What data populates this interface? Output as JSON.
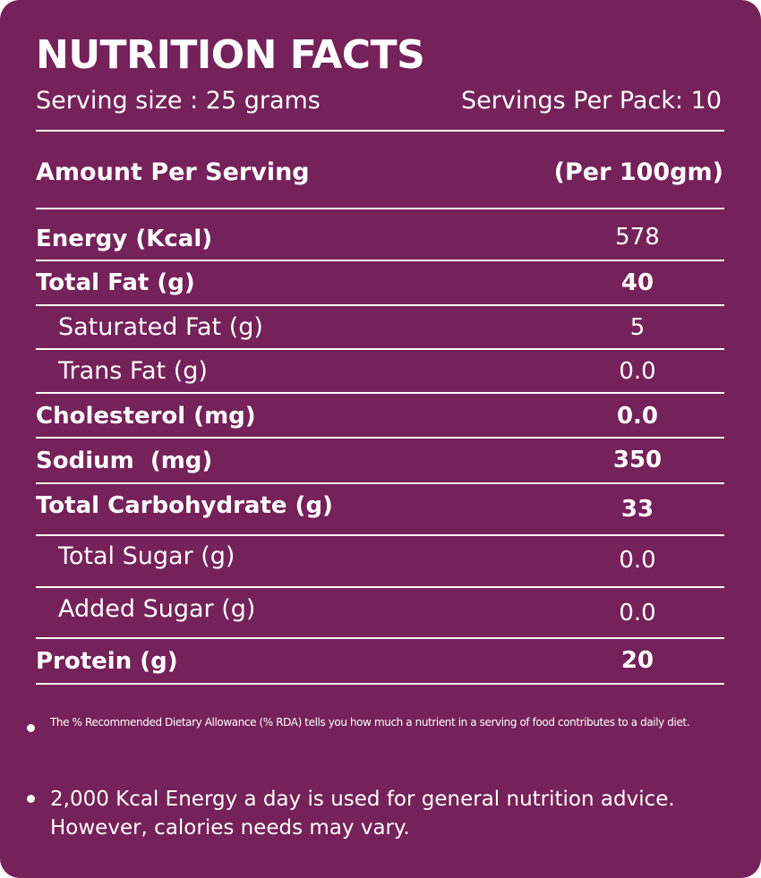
{
  "header": {
    "title": "NUTRITION FACTS",
    "serving_size": "Serving size : 25 grams",
    "servings_per_pack": "Servings Per Pack: 10"
  },
  "table": {
    "amount_label": "Amount Per Serving",
    "per_label": "(Per 100gm)",
    "rows": [
      {
        "label": "Energy (Kcal)",
        "value": "578"
      },
      {
        "label": "Total Fat (g)",
        "value": "40"
      },
      {
        "label": "Saturated Fat (g)",
        "value": "5"
      },
      {
        "label": "Trans Fat (g)",
        "value": "0.0"
      },
      {
        "label": "Cholesterol (mg)",
        "value": "0.0"
      },
      {
        "label": "Sodium  (mg)",
        "value": "350"
      },
      {
        "label": "Total Carbohydrate (g)",
        "value": "33"
      },
      {
        "label": "Total Sugar (g)",
        "value": "0.0"
      },
      {
        "label": "Added Sugar (g)",
        "value": "0.0"
      },
      {
        "label": "Protein (g)",
        "value": "20"
      }
    ]
  },
  "notes": {
    "rda": "The % Recommended Dietary Allowance (% RDA) tells you how much a nutrient in a serving of food contributes to a daily diet.",
    "energy": "2,000 Kcal Energy a day is used for general nutrition advice. However, calories needs may vary."
  },
  "colors": {
    "background": "#75215a",
    "text": "#ffffff"
  }
}
